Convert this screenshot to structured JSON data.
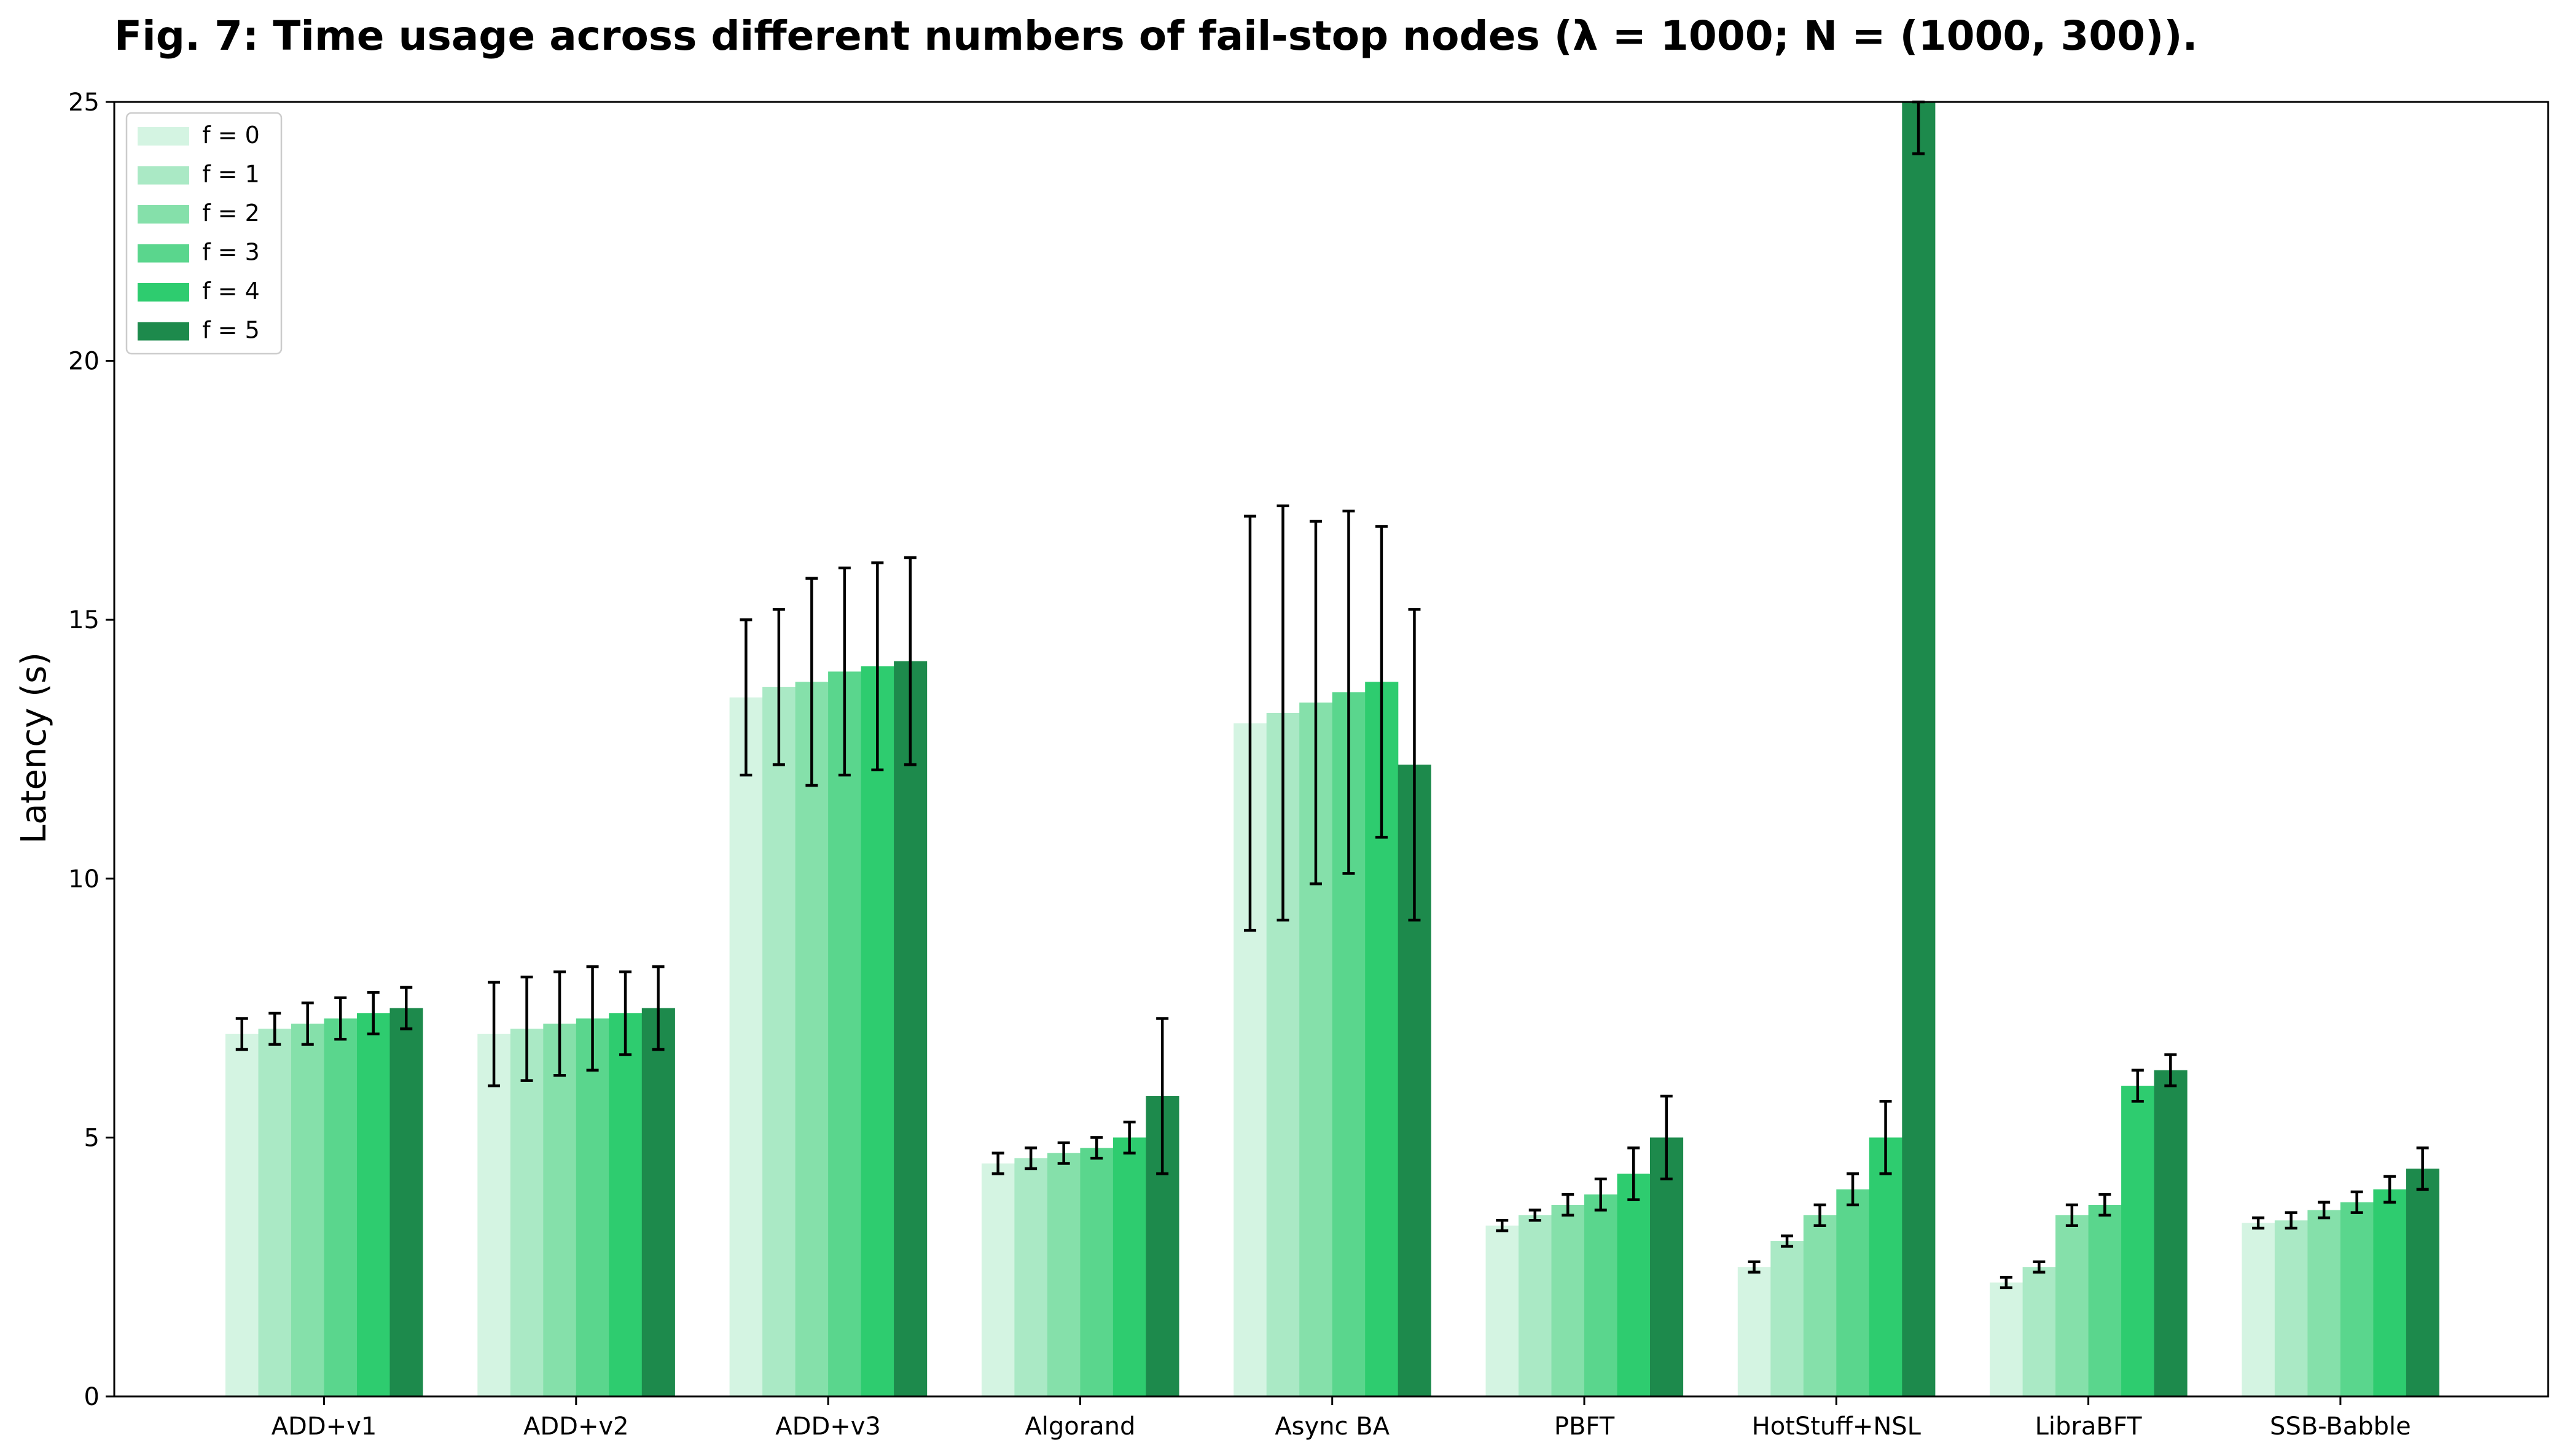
{
  "chart_data": {
    "type": "bar",
    "title": "Fig. 7: Time usage across different numbers of fail-stop nodes (λ = 1000; N = (1000, 300)).",
    "xlabel": "",
    "ylabel": "Latency (s)",
    "ylim": [
      0,
      25
    ],
    "yticks": [
      0,
      5,
      10,
      15,
      20,
      25
    ],
    "grid": false,
    "legend_position": "top-left",
    "categories": [
      "ADD+v1",
      "ADD+v2",
      "ADD+v3",
      "Algorand",
      "Async BA",
      "PBFT",
      "HotStuff+NSL",
      "LibraBFT",
      "SSB-Babble"
    ],
    "series": [
      {
        "name": "f = 0",
        "color": "#d4f4e2",
        "values": [
          7.0,
          7.0,
          13.5,
          4.5,
          13.0,
          3.3,
          2.5,
          2.2,
          3.35
        ],
        "errors": [
          0.3,
          1.0,
          1.5,
          0.2,
          4.0,
          0.1,
          0.1,
          0.1,
          0.1
        ]
      },
      {
        "name": "f = 1",
        "color": "#aae9c5",
        "values": [
          7.1,
          7.1,
          13.7,
          4.6,
          13.2,
          3.5,
          3.0,
          2.5,
          3.4
        ],
        "errors": [
          0.3,
          1.0,
          1.5,
          0.2,
          4.0,
          0.1,
          0.1,
          0.1,
          0.15
        ]
      },
      {
        "name": "f = 2",
        "color": "#85e0aa",
        "values": [
          7.2,
          7.2,
          13.8,
          4.7,
          13.4,
          3.7,
          3.5,
          3.5,
          3.6
        ],
        "errors": [
          0.4,
          1.0,
          2.0,
          0.2,
          3.5,
          0.2,
          0.2,
          0.2,
          0.15
        ]
      },
      {
        "name": "f = 3",
        "color": "#5ad68d",
        "values": [
          7.3,
          7.3,
          14.0,
          4.8,
          13.6,
          3.9,
          4.0,
          3.7,
          3.75
        ],
        "errors": [
          0.4,
          1.0,
          2.0,
          0.2,
          3.5,
          0.3,
          0.3,
          0.2,
          0.2
        ]
      },
      {
        "name": "f = 4",
        "color": "#2ecc6f",
        "values": [
          7.4,
          7.4,
          14.1,
          5.0,
          13.8,
          4.3,
          5.0,
          6.0,
          4.0
        ],
        "errors": [
          0.4,
          0.8,
          2.0,
          0.3,
          3.0,
          0.5,
          0.7,
          0.3,
          0.25
        ]
      },
      {
        "name": "f = 5",
        "color": "#1d8a4c",
        "values": [
          7.5,
          7.5,
          14.2,
          5.8,
          12.2,
          5.0,
          25.0,
          6.3,
          4.4
        ],
        "errors": [
          0.4,
          0.8,
          2.0,
          1.5,
          3.0,
          0.8,
          1.0,
          0.3,
          0.4
        ]
      }
    ]
  }
}
